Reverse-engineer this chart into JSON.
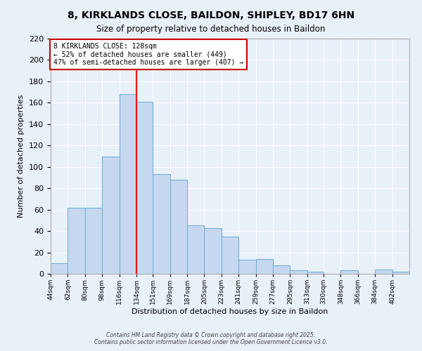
{
  "title": "8, KIRKLANDS CLOSE, BAILDON, SHIPLEY, BD17 6HN",
  "subtitle": "Size of property relative to detached houses in Baildon",
  "xlabel": "Distribution of detached houses by size in Baildon",
  "ylabel": "Number of detached properties",
  "bar_color": "#c5d8ef",
  "bar_edge_color": "#6aaad4",
  "background_color": "#e8f0f8",
  "grid_color": "#ffffff",
  "categories": [
    "44sqm",
    "62sqm",
    "80sqm",
    "98sqm",
    "116sqm",
    "134sqm",
    "151sqm",
    "169sqm",
    "187sqm",
    "205sqm",
    "223sqm",
    "241sqm",
    "259sqm",
    "277sqm",
    "295sqm",
    "313sqm",
    "330sqm",
    "348sqm",
    "366sqm",
    "384sqm",
    "402sqm"
  ],
  "values": [
    10,
    62,
    62,
    110,
    168,
    161,
    93,
    88,
    45,
    43,
    35,
    13,
    14,
    8,
    3,
    2,
    0,
    3,
    0,
    4,
    2
  ],
  "bin_left_edges": [
    44,
    62,
    80,
    98,
    116,
    134,
    151,
    169,
    187,
    205,
    223,
    241,
    259,
    277,
    295,
    313,
    330,
    348,
    366,
    384,
    402
  ],
  "bin_widths": [
    18,
    18,
    18,
    18,
    18,
    17,
    18,
    18,
    18,
    18,
    18,
    18,
    18,
    18,
    18,
    17,
    18,
    18,
    18,
    18,
    18
  ],
  "ylim": [
    0,
    220
  ],
  "yticks": [
    0,
    20,
    40,
    60,
    80,
    100,
    120,
    140,
    160,
    180,
    200,
    220
  ],
  "vline_x": 134,
  "annotation_line1": "8 KIRKLANDS CLOSE: 128sqm",
  "annotation_line2": "← 52% of detached houses are smaller (449)",
  "annotation_line3": "47% of semi-detached houses are larger (407) →",
  "footer1": "Contains HM Land Registry data © Crown copyright and database right 2025.",
  "footer2": "Contains public sector information licensed under the Open Government Licence v3.0."
}
